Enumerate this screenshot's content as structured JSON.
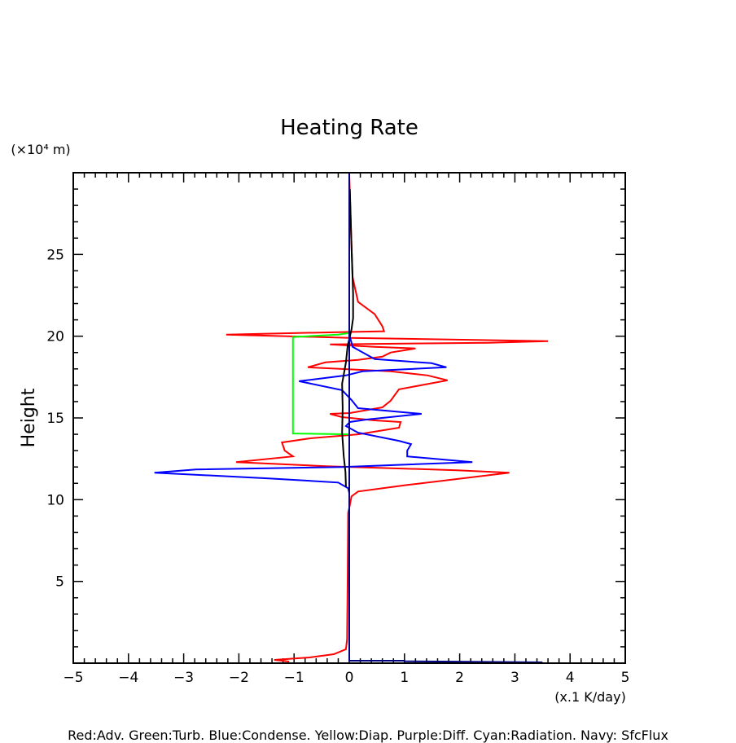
{
  "chart_data": {
    "type": "line",
    "title": "Heating Rate",
    "ylabel": "Height",
    "yunit": "(×10⁴ m)",
    "xunit": "(x.1 K/day)",
    "xlim": [
      -5,
      5
    ],
    "ylim": [
      0,
      30
    ],
    "xticks": [
      "−5",
      "−4",
      "−3",
      "−2",
      "−1",
      "0",
      "1",
      "2",
      "3",
      "4",
      "5"
    ],
    "yticks": [
      "5",
      "10",
      "15",
      "20",
      "25"
    ],
    "legend_text": "Red:Adv.  Green:Turb.  Blue:Condense.  Yellow:Diap.  Purple:Diff.  Cyan:Radiation.  Navy: SfcFlux",
    "series": [
      {
        "name": "Red:Adv.",
        "color": "#ff0000",
        "points": [
          [
            -1.09,
            0.1
          ],
          [
            -1.36,
            0.2
          ],
          [
            -0.72,
            0.35
          ],
          [
            -0.28,
            0.55
          ],
          [
            -0.06,
            0.85
          ],
          [
            -0.04,
            1.45
          ],
          [
            -0.03,
            5
          ],
          [
            -0.02,
            9.2
          ],
          [
            0,
            9.5
          ],
          [
            0.04,
            10.2
          ],
          [
            0.16,
            10.5
          ],
          [
            1.05,
            10.9
          ],
          [
            2.9,
            11.65
          ],
          [
            1.95,
            11.8
          ],
          [
            -0.43,
            12.05
          ],
          [
            -2.05,
            12.3
          ],
          [
            -1.02,
            12.65
          ],
          [
            -1.17,
            13.0
          ],
          [
            -1.22,
            13.5
          ],
          [
            -0.72,
            13.75
          ],
          [
            0.16,
            14.0
          ],
          [
            0.9,
            14.4
          ],
          [
            0.93,
            14.75
          ],
          [
            0.46,
            14.85
          ],
          [
            -0.13,
            15.05
          ],
          [
            -0.35,
            15.25
          ],
          [
            0.01,
            15.3
          ],
          [
            0.6,
            15.65
          ],
          [
            0.75,
            16.05
          ],
          [
            0.9,
            16.75
          ],
          [
            1.78,
            17.3
          ],
          [
            1.42,
            17.6
          ],
          [
            0.75,
            17.85
          ],
          [
            -0.75,
            18.1
          ],
          [
            -0.43,
            18.4
          ],
          [
            0.16,
            18.55
          ],
          [
            0.6,
            18.75
          ],
          [
            0.75,
            19.0
          ],
          [
            1.2,
            19.25
          ],
          [
            0.46,
            19.35
          ],
          [
            -0.35,
            19.5
          ],
          [
            2.52,
            19.6
          ],
          [
            3.6,
            19.7
          ],
          [
            0.01,
            19.9
          ],
          [
            -2.23,
            20.1
          ],
          [
            -0.13,
            20.25
          ],
          [
            0.63,
            20.3
          ],
          [
            0.6,
            20.6
          ],
          [
            0.46,
            21.35
          ],
          [
            0.16,
            22.1
          ],
          [
            0.06,
            23.6
          ],
          [
            0.03,
            26.6
          ],
          [
            0,
            29.9
          ]
        ]
      },
      {
        "name": "Green:Turb.",
        "color": "#00ff00",
        "points": [
          [
            0,
            14.0
          ],
          [
            -1.02,
            14.05
          ],
          [
            -1.02,
            19.95
          ],
          [
            -0.2,
            20.1
          ],
          [
            0,
            20.2
          ]
        ]
      },
      {
        "name": "Blue:Condense.",
        "color": "#0000ff",
        "points": [
          [
            0,
            0.2
          ],
          [
            0,
            10.4
          ],
          [
            -0.02,
            10.7
          ],
          [
            -0.2,
            11.05
          ],
          [
            -1.46,
            11.3
          ],
          [
            -3.53,
            11.65
          ],
          [
            -2.78,
            11.85
          ],
          [
            -0.13,
            12.0
          ],
          [
            2.23,
            12.3
          ],
          [
            1.05,
            12.65
          ],
          [
            1.05,
            13.0
          ],
          [
            1.12,
            13.4
          ],
          [
            0.9,
            13.6
          ],
          [
            0.16,
            14.1
          ],
          [
            -0.06,
            14.5
          ],
          [
            0.01,
            14.75
          ],
          [
            0.31,
            14.9
          ],
          [
            1.31,
            15.25
          ],
          [
            0.16,
            15.6
          ],
          [
            0.04,
            16.1
          ],
          [
            -0.13,
            16.7
          ],
          [
            -0.91,
            17.25
          ],
          [
            -0.06,
            17.6
          ],
          [
            0.24,
            17.85
          ],
          [
            1.76,
            18.1
          ],
          [
            1.49,
            18.35
          ],
          [
            0.46,
            18.6
          ],
          [
            0.06,
            19.35
          ],
          [
            0,
            20.1
          ],
          [
            0,
            30
          ]
        ]
      },
      {
        "name": "Cyan:Radiation.",
        "color": "#000000",
        "points": [
          [
            -0.06,
            10.8
          ],
          [
            -0.07,
            11.7
          ],
          [
            -0.1,
            12.65
          ],
          [
            -0.13,
            14.1
          ],
          [
            -0.12,
            15.6
          ],
          [
            -0.13,
            17.1
          ],
          [
            -0.06,
            18.4
          ],
          [
            -0.03,
            19.4
          ],
          [
            0.04,
            20.4
          ],
          [
            0.07,
            21.1
          ],
          [
            0.07,
            22.6
          ],
          [
            0.04,
            25.6
          ],
          [
            0.01,
            29
          ]
        ]
      },
      {
        "name": "Navy: SfcFlux",
        "color": "#000080",
        "points": [
          [
            0,
            30
          ],
          [
            0,
            0.15
          ],
          [
            1.0,
            0.15
          ],
          [
            1.0,
            0.12
          ],
          [
            3.5,
            0.05
          ]
        ]
      }
    ]
  }
}
